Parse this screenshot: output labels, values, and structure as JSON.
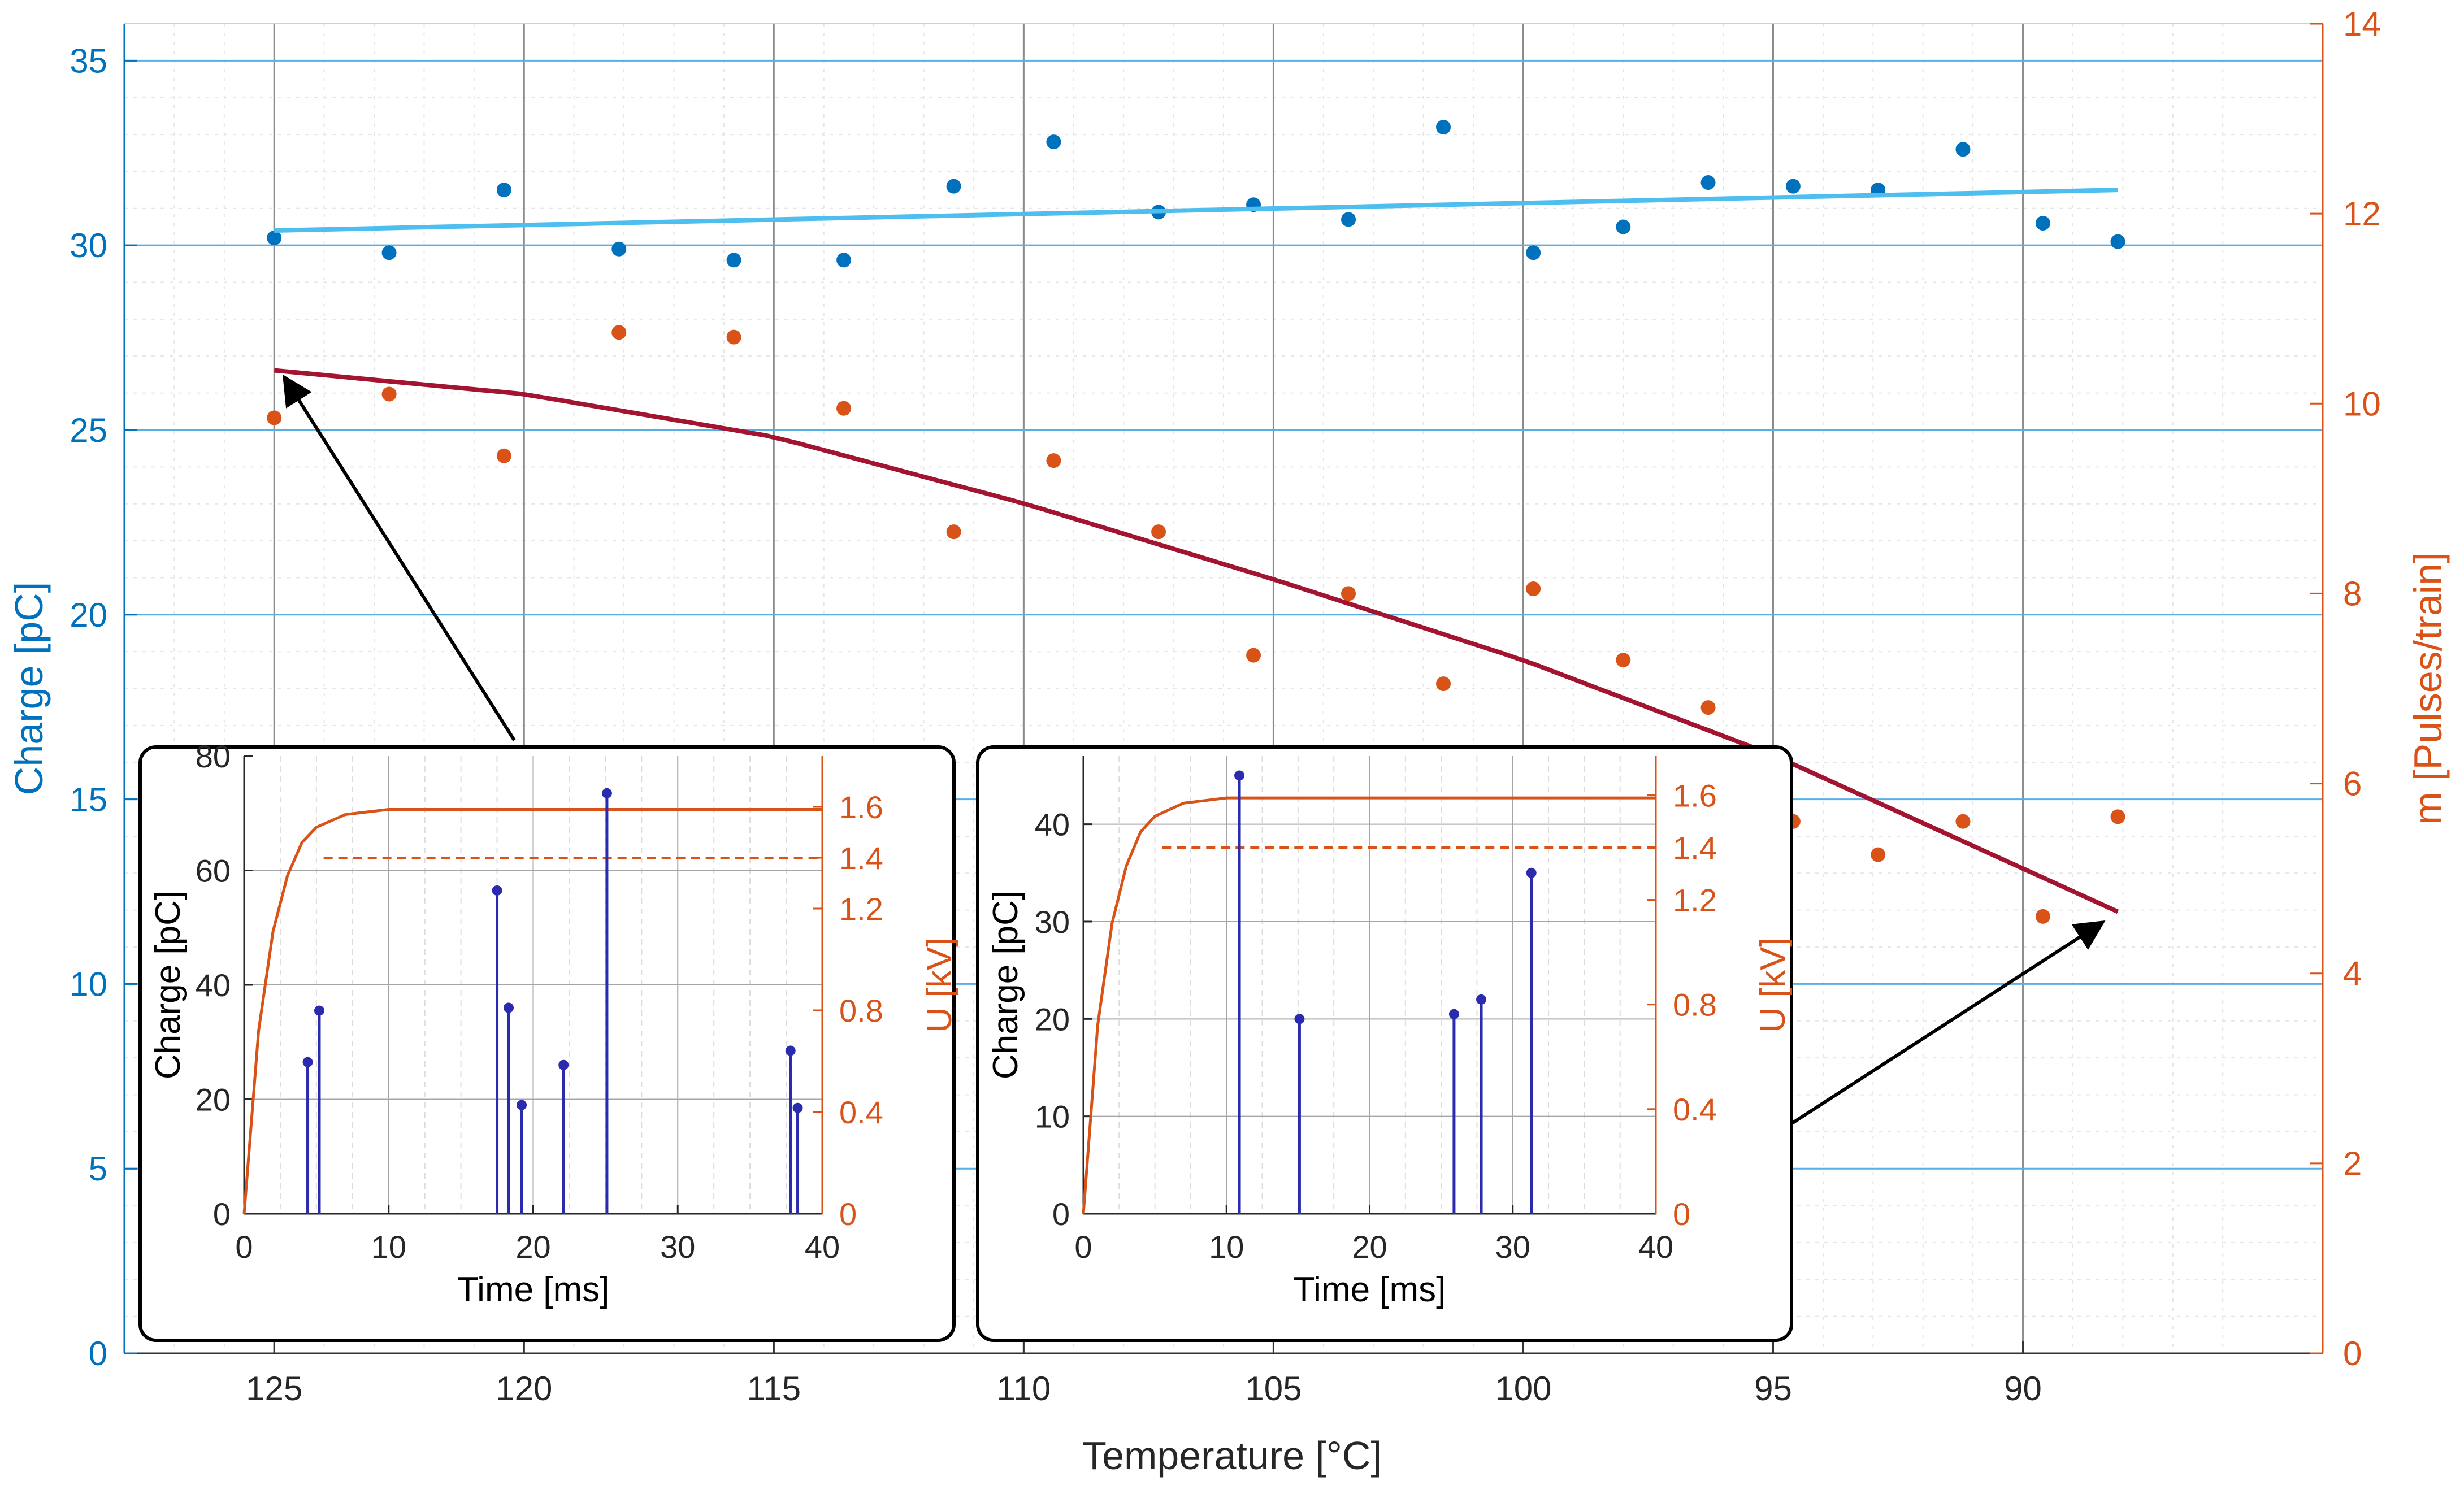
{
  "chart_data": {
    "main": {
      "type": "scatter",
      "xlabel": "Temperature [°C]",
      "ylabel_left": "Charge [pC]",
      "ylabel_right": "m [Pulses/train]",
      "xlim": [
        128,
        84
      ],
      "ylim_left": [
        0,
        36
      ],
      "ylim_right": [
        0,
        14
      ],
      "x_ticks": [
        125,
        120,
        115,
        110,
        105,
        100,
        95,
        90
      ],
      "y_ticks_left": [
        0,
        5,
        10,
        15,
        20,
        25,
        30,
        35
      ],
      "y_ticks_right": [
        0,
        2,
        4,
        6,
        8,
        10,
        12,
        14
      ],
      "grid": true,
      "colors": {
        "charge": "#0072BD",
        "pulses": "#D95319",
        "charge_fit": "#4DBEEE",
        "pulses_fit": "#A2142F",
        "axis_left": "#0072BD",
        "axis_right": "#D95319"
      },
      "series": [
        {
          "name": "Charge",
          "axis": "left",
          "x": [
            125,
            122.7,
            120.4,
            118.1,
            115.8,
            113.6,
            111.4,
            109.4,
            107.3,
            105.4,
            103.5,
            101.6,
            99.8,
            98.0,
            96.3,
            94.6,
            92.9,
            91.2,
            89.6,
            88.1
          ],
          "y": [
            30.2,
            29.8,
            31.5,
            29.9,
            29.6,
            29.6,
            31.6,
            32.8,
            30.9,
            31.1,
            30.7,
            33.2,
            29.8,
            30.5,
            31.7,
            31.6,
            31.5,
            32.6,
            30.6,
            30.1
          ]
        },
        {
          "name": "m",
          "axis": "right",
          "x": [
            125,
            122.7,
            120.4,
            118.1,
            115.8,
            113.6,
            111.4,
            109.4,
            107.3,
            105.4,
            103.5,
            101.6,
            99.8,
            98.0,
            96.3,
            94.6,
            92.9,
            91.2,
            89.6,
            88.1
          ],
          "y": [
            9.85,
            10.1,
            9.45,
            10.75,
            10.7,
            9.95,
            8.65,
            9.4,
            8.65,
            7.35,
            8.0,
            7.05,
            8.05,
            7.3,
            6.8,
            5.6,
            5.25,
            5.6,
            4.6,
            5.65
          ]
        },
        {
          "name": "Charge fit",
          "axis": "left",
          "type": "line",
          "x": [
            125,
            88.1
          ],
          "y": [
            30.4,
            31.5
          ]
        },
        {
          "name": "m fit",
          "axis": "right",
          "type": "line",
          "x": [
            125,
            120,
            115,
            110,
            105,
            100,
            95,
            88.1
          ],
          "y": [
            10.35,
            10.1,
            9.65,
            8.95,
            8.15,
            7.3,
            6.3,
            4.65
          ]
        }
      ]
    },
    "insets": [
      {
        "type": "stem",
        "xlabel": "Time [ms]",
        "ylabel_left": "Charge [pC]",
        "ylabel_right": "U [kV]",
        "xlim": [
          0,
          40
        ],
        "ylim_left": [
          0,
          80
        ],
        "ylim_right": [
          0,
          1.8
        ],
        "x_ticks": [
          0,
          10,
          20,
          30,
          40
        ],
        "y_ticks_left": [
          0,
          20,
          40,
          60,
          80
        ],
        "y_ticks_right": [
          "0",
          "0.4",
          "0.8",
          "1.2",
          "1.4",
          "1.6"
        ],
        "stems": {
          "x": [
            4.4,
            5.2,
            17.5,
            18.3,
            19.2,
            22.1,
            25.1,
            37.8,
            38.3
          ],
          "y": [
            26.5,
            35.5,
            56.5,
            36.0,
            19.0,
            26.0,
            73.5,
            28.5,
            18.5
          ]
        },
        "voltage_curve": {
          "t": [
            0,
            1,
            2,
            3,
            4,
            5,
            7,
            10,
            40
          ],
          "u": [
            0,
            0.72,
            1.11,
            1.33,
            1.46,
            1.52,
            1.57,
            1.59,
            1.59
          ]
        },
        "threshold_kv": 1.4
      },
      {
        "type": "stem",
        "xlabel": "Time [ms]",
        "ylabel_left": "Charge [pC]",
        "ylabel_right": "U [kV]",
        "xlim": [
          0,
          40
        ],
        "ylim_left": [
          0,
          47
        ],
        "ylim_right": [
          0,
          1.75
        ],
        "x_ticks": [
          0,
          10,
          20,
          30,
          40
        ],
        "y_ticks_left": [
          0,
          10,
          20,
          30,
          40
        ],
        "y_ticks_right": [
          "0",
          "0.4",
          "0.8",
          "1.2",
          "1.4",
          "1.6"
        ],
        "stems": {
          "x": [
            10.9,
            15.1,
            25.9,
            27.8,
            31.3
          ],
          "y": [
            45.0,
            20.0,
            20.5,
            22.0,
            35.0
          ]
        },
        "voltage_curve": {
          "t": [
            0,
            1,
            2,
            3,
            4,
            5,
            7,
            10,
            40
          ],
          "u": [
            0,
            0.72,
            1.11,
            1.33,
            1.46,
            1.52,
            1.57,
            1.59,
            1.59
          ]
        },
        "threshold_kv": 1.4
      }
    ]
  }
}
